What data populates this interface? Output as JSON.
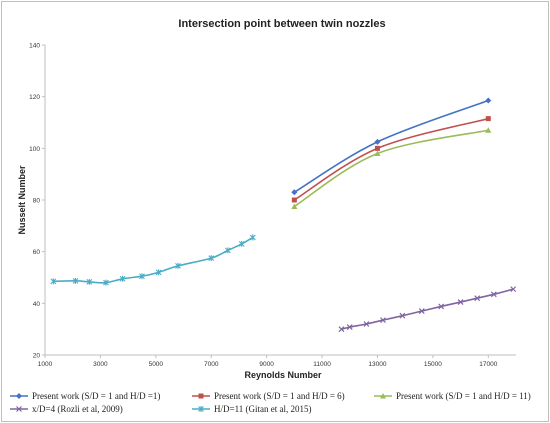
{
  "chart_data": {
    "type": "line",
    "title": "Intersection point between twin nozzles",
    "xlabel": "Reynolds Number",
    "ylabel": "Nusselt Number",
    "xlim": [
      1000,
      18000
    ],
    "ylim": [
      20,
      140
    ],
    "x_ticks": [
      "1000",
      "3000",
      "5000",
      "7000",
      "9000",
      "11000",
      "13000",
      "15000",
      "17000"
    ],
    "x_tick_values": [
      1000,
      3000,
      5000,
      7000,
      9000,
      11000,
      13000,
      15000,
      17000
    ],
    "y_ticks": [
      "20",
      "40",
      "60",
      "80",
      "100",
      "120",
      "140"
    ],
    "y_tick_values": [
      20,
      40,
      60,
      80,
      100,
      120,
      140
    ],
    "grid": false,
    "legend_position": "bottom",
    "series": [
      {
        "name": "Present work (S/D = 1 and H/D =1)",
        "color": "#4472c4",
        "marker": "diamond",
        "x": [
          10000,
          13000,
          17000
        ],
        "y": [
          83,
          102.5,
          118.5
        ]
      },
      {
        "name": "Present work (S/D = 1 and H/D = 6)",
        "color": "#c0504d",
        "marker": "square",
        "x": [
          10000,
          13000,
          17000
        ],
        "y": [
          80,
          100,
          111.5
        ]
      },
      {
        "name": "Present work (S/D = 1 and H/D = 11)",
        "color": "#9bbb59",
        "marker": "triangle",
        "x": [
          10000,
          13000,
          17000
        ],
        "y": [
          77.5,
          98,
          107
        ]
      },
      {
        "name": "x/D=4 (Rozli et al, 2009)",
        "color": "#8064a2",
        "marker": "x",
        "x": [
          11700,
          12000,
          12600,
          13200,
          13900,
          14600,
          15300,
          16000,
          16600,
          17200,
          17900
        ],
        "y": [
          30,
          30.8,
          32,
          33.5,
          35.2,
          37,
          38.8,
          40.5,
          42,
          43.5,
          45.5
        ]
      },
      {
        "name": "H/D=11 (Gitan et al, 2015)",
        "color": "#4bacc6",
        "marker": "star",
        "x": [
          1300,
          2100,
          2600,
          3200,
          3800,
          4500,
          5100,
          5800,
          7000,
          7600,
          8100,
          8500
        ],
        "y": [
          48.5,
          48.7,
          48.3,
          48,
          49.5,
          50.5,
          52,
          54.5,
          57.5,
          60.5,
          63,
          65.5
        ]
      }
    ]
  }
}
